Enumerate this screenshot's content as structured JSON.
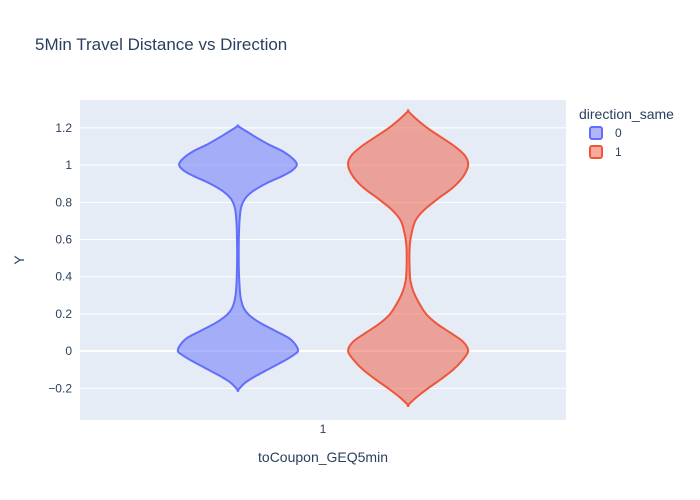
{
  "chart_data": {
    "type": "violin",
    "title": "5Min Travel Distance vs Direction",
    "xlabel": "toCoupon_GEQ5min",
    "ylabel": "Y",
    "categories": [
      "1"
    ],
    "ylim": [
      -0.37,
      1.35
    ],
    "yticks": [
      -0.2,
      0,
      0.2,
      0.4,
      0.6,
      0.8,
      1,
      1.2
    ],
    "ytick_labels": [
      "−0.2",
      "0",
      "0.2",
      "0.4",
      "0.6",
      "0.8",
      "1",
      "1.2"
    ],
    "grid": true,
    "legend": {
      "title": "direction_same",
      "position": "top-right"
    },
    "series": [
      {
        "name": "0",
        "category": "1",
        "line_color": "#636efa",
        "fill_color": "rgba(99,110,250,0.5)",
        "y_range": [
          -0.21,
          1.21
        ],
        "density_profile": [
          [
            -0.21,
            0.0
          ],
          [
            -0.17,
            0.12
          ],
          [
            -0.13,
            0.32
          ],
          [
            -0.09,
            0.55
          ],
          [
            -0.05,
            0.78
          ],
          [
            -0.02,
            0.93
          ],
          [
            0.0,
            1.0
          ],
          [
            0.03,
            0.97
          ],
          [
            0.07,
            0.85
          ],
          [
            0.11,
            0.62
          ],
          [
            0.15,
            0.38
          ],
          [
            0.19,
            0.2
          ],
          [
            0.23,
            0.1
          ],
          [
            0.28,
            0.05
          ],
          [
            0.33,
            0.03
          ],
          [
            0.45,
            0.015
          ],
          [
            0.6,
            0.015
          ],
          [
            0.72,
            0.03
          ],
          [
            0.78,
            0.06
          ],
          [
            0.82,
            0.12
          ],
          [
            0.86,
            0.25
          ],
          [
            0.9,
            0.46
          ],
          [
            0.94,
            0.73
          ],
          [
            0.97,
            0.9
          ],
          [
            1.0,
            0.98
          ],
          [
            1.03,
            0.93
          ],
          [
            1.07,
            0.77
          ],
          [
            1.11,
            0.52
          ],
          [
            1.15,
            0.3
          ],
          [
            1.18,
            0.15
          ],
          [
            1.21,
            0.0
          ]
        ]
      },
      {
        "name": "1",
        "category": "1",
        "line_color": "#ef553b",
        "fill_color": "rgba(239,85,59,0.5)",
        "y_range": [
          -0.29,
          1.29
        ],
        "density_profile": [
          [
            -0.29,
            0.0
          ],
          [
            -0.25,
            0.13
          ],
          [
            -0.2,
            0.33
          ],
          [
            -0.15,
            0.55
          ],
          [
            -0.1,
            0.75
          ],
          [
            -0.05,
            0.9
          ],
          [
            0.0,
            1.0
          ],
          [
            0.05,
            0.92
          ],
          [
            0.1,
            0.7
          ],
          [
            0.15,
            0.47
          ],
          [
            0.2,
            0.3
          ],
          [
            0.26,
            0.18
          ],
          [
            0.32,
            0.09
          ],
          [
            0.38,
            0.04
          ],
          [
            0.45,
            0.025
          ],
          [
            0.55,
            0.025
          ],
          [
            0.62,
            0.05
          ],
          [
            0.7,
            0.12
          ],
          [
            0.76,
            0.27
          ],
          [
            0.82,
            0.5
          ],
          [
            0.88,
            0.75
          ],
          [
            0.94,
            0.92
          ],
          [
            1.0,
            1.0
          ],
          [
            1.05,
            0.95
          ],
          [
            1.1,
            0.78
          ],
          [
            1.15,
            0.55
          ],
          [
            1.2,
            0.32
          ],
          [
            1.25,
            0.13
          ],
          [
            1.29,
            0.0
          ]
        ]
      }
    ]
  }
}
